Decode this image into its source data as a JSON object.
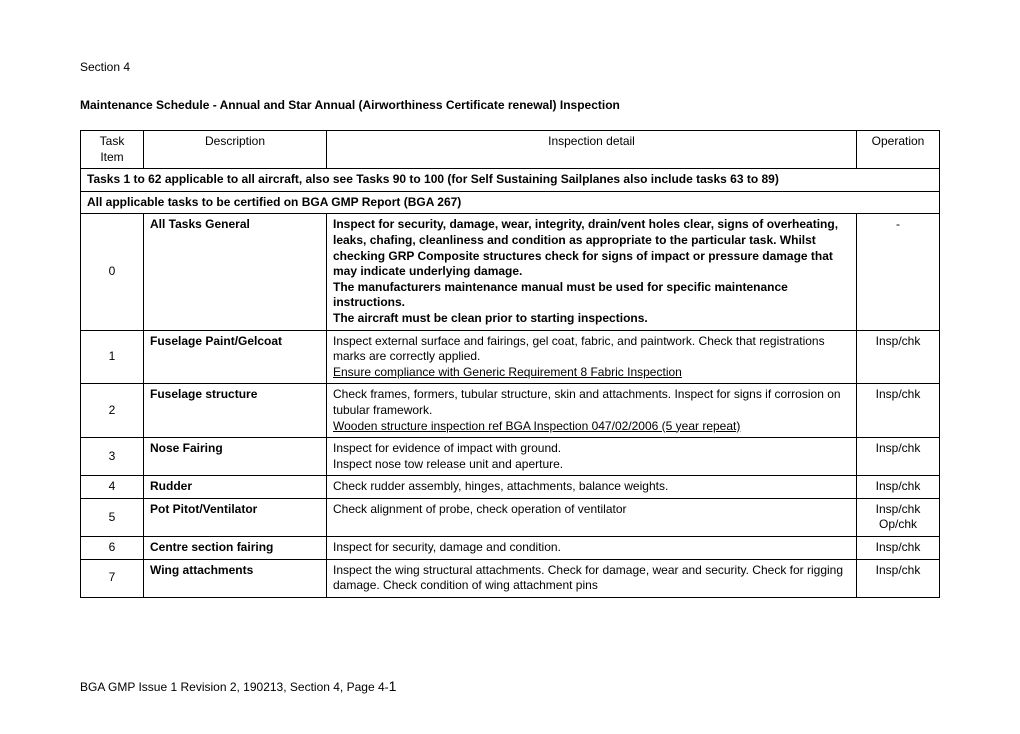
{
  "section_label": "Section 4",
  "title": "Maintenance Schedule - Annual and Star Annual (Airworthiness Certificate renewal) Inspection",
  "header": {
    "task": "Task Item",
    "desc": "Description",
    "detail": "Inspection detail",
    "op": "Operation"
  },
  "span_row_1": "Tasks 1 to 62 applicable to all aircraft, also see Tasks 90 to 100 (for Self Sustaining Sailplanes also include tasks 63 to 89)",
  "span_row_2": "All applicable tasks to be certified on BGA GMP Report (BGA 267)",
  "rows": [
    {
      "task": "0",
      "desc": "All Tasks General",
      "detail_bold": "Inspect for security, damage, wear, integrity, drain/vent holes clear, signs of overheating, leaks, chafing, cleanliness and condition as appropriate to the particular task. Whilst checking GRP Composite structures check for signs of impact or pressure damage that may indicate underlying damage.",
      "detail_bold2": "The manufacturers maintenance manual must be used for specific maintenance instructions.",
      "detail_bold3": "The aircraft must be clean prior to starting inspections.",
      "op": "-"
    },
    {
      "task": "1",
      "desc": "Fuselage Paint/Gelcoat",
      "detail": "Inspect external surface and fairings, gel coat, fabric, and paintwork. Check that registrations marks are correctly applied.",
      "detail_u": "Ensure compliance with Generic Requirement 8 Fabric Inspection",
      "op": "Insp/chk"
    },
    {
      "task": "2",
      "desc": "Fuselage structure",
      "detail": "Check frames, formers, tubular structure, skin and attachments. Inspect for signs if corrosion on tubular framework.",
      "detail_u": "Wooden structure inspection ref BGA Inspection 047/02/2006 (5 year repeat)",
      "op": "Insp/chk"
    },
    {
      "task": "3",
      "desc": "Nose Fairing",
      "detail": "Inspect for evidence of impact with ground.",
      "detail2": "Inspect nose tow release unit and aperture.",
      "op": "Insp/chk"
    },
    {
      "task": "4",
      "desc": "Rudder",
      "detail": "Check rudder assembly, hinges, attachments, balance weights.",
      "op": "Insp/chk"
    },
    {
      "task": "5",
      "desc": "Pot Pitot/Ventilator",
      "detail": "Check alignment of probe, check operation of ventilator",
      "op": "Insp/chk Op/chk"
    },
    {
      "task": "6",
      "desc": "Centre section fairing",
      "detail": "Inspect for security, damage and condition.",
      "op": "Insp/chk"
    },
    {
      "task": "7",
      "desc": "Wing attachments",
      "detail": "Inspect the wing structural attachments. Check for damage, wear and security. Check for rigging damage. Check condition of wing attachment pins",
      "op": "Insp/chk"
    }
  ],
  "footer_prefix": "BGA GMP Issue 1 Revision 2, 190213, Section 4, Page 4-",
  "footer_page": "1"
}
